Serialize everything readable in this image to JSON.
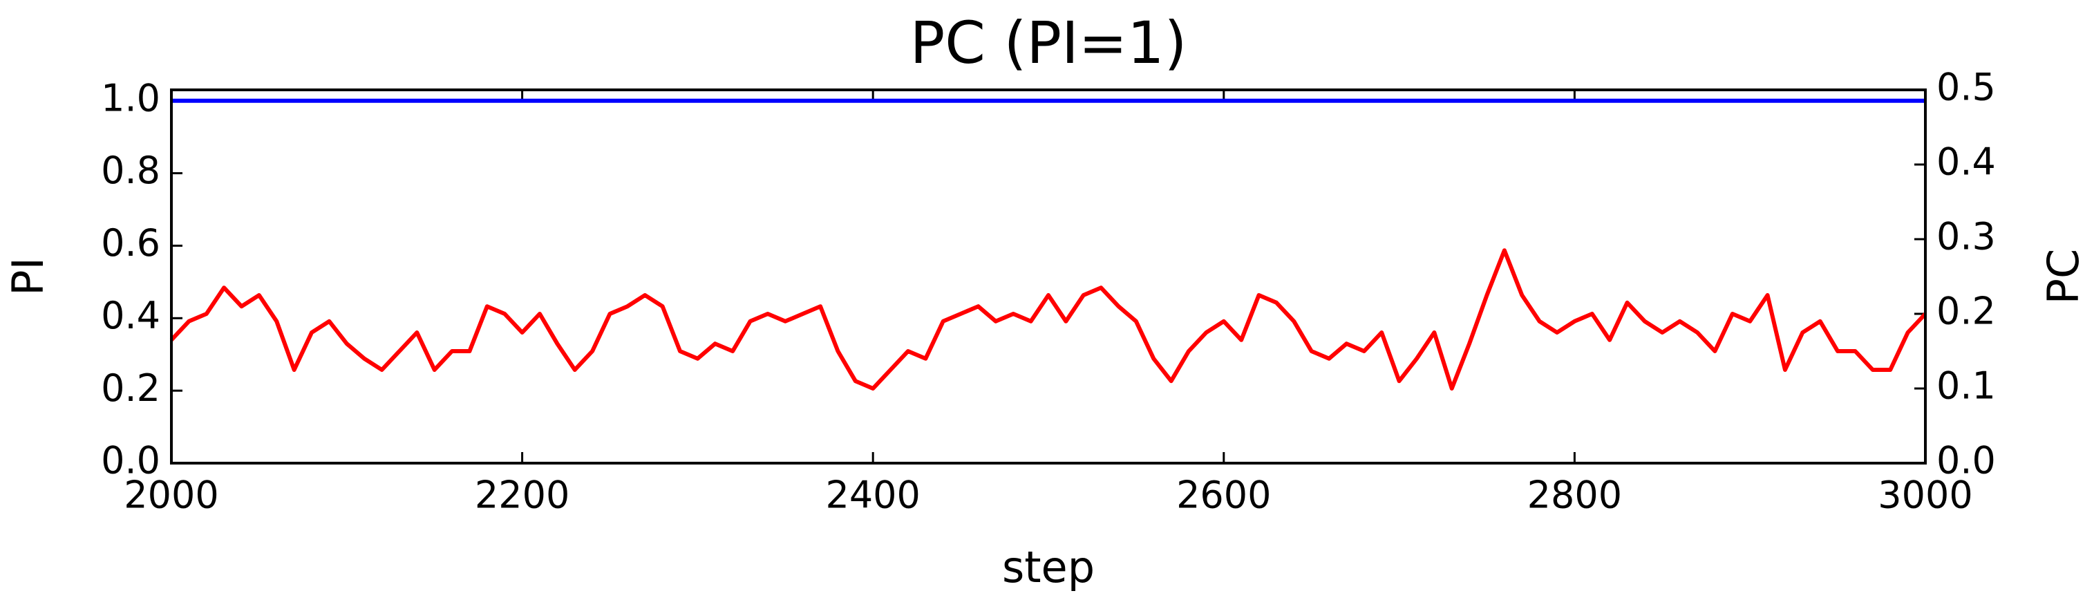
{
  "chart_data": {
    "type": "line",
    "title": "PC (PI=1)",
    "x_label": "step",
    "y_label": "PI",
    "y2_label": "PC",
    "x": [
      2000,
      2010,
      2020,
      2030,
      2040,
      2050,
      2060,
      2070,
      2080,
      2090,
      2100,
      2110,
      2120,
      2130,
      2140,
      2150,
      2160,
      2170,
      2180,
      2190,
      2200,
      2210,
      2220,
      2230,
      2240,
      2250,
      2260,
      2270,
      2280,
      2290,
      2300,
      2310,
      2320,
      2330,
      2340,
      2350,
      2360,
      2370,
      2380,
      2390,
      2400,
      2410,
      2420,
      2430,
      2440,
      2450,
      2460,
      2470,
      2480,
      2490,
      2500,
      2510,
      2520,
      2530,
      2540,
      2550,
      2560,
      2570,
      2580,
      2590,
      2600,
      2610,
      2620,
      2630,
      2640,
      2650,
      2660,
      2670,
      2680,
      2690,
      2700,
      2710,
      2720,
      2730,
      2740,
      2750,
      2760,
      2770,
      2780,
      2790,
      2800,
      2810,
      2820,
      2830,
      2840,
      2850,
      2860,
      2870,
      2880,
      2890,
      2900,
      2910,
      2920,
      2930,
      2940,
      2950,
      2960,
      2970,
      2980,
      2990,
      3000
    ],
    "series": [
      {
        "color": "#0000ff",
        "axis": "y",
        "values": [
          1,
          1,
          1,
          1,
          1,
          1,
          1,
          1,
          1,
          1,
          1,
          1,
          1,
          1,
          1,
          1,
          1,
          1,
          1,
          1,
          1,
          1,
          1,
          1,
          1,
          1,
          1,
          1,
          1,
          1,
          1,
          1,
          1,
          1,
          1,
          1,
          1,
          1,
          1,
          1,
          1,
          1,
          1,
          1,
          1,
          1,
          1,
          1,
          1,
          1,
          1,
          1,
          1,
          1,
          1,
          1,
          1,
          1,
          1,
          1,
          1,
          1,
          1,
          1,
          1,
          1,
          1,
          1,
          1,
          1,
          1,
          1,
          1,
          1,
          1,
          1,
          1,
          1,
          1,
          1,
          1,
          1,
          1,
          1,
          1,
          1,
          1,
          1,
          1,
          1,
          1,
          1,
          1,
          1,
          1,
          1,
          1,
          1,
          1,
          1,
          1
        ]
      },
      {
        "color": "#ff0000",
        "axis": "y2",
        "values": [
          0.165,
          0.19,
          0.2,
          0.235,
          0.21,
          0.225,
          0.19,
          0.125,
          0.175,
          0.19,
          0.16,
          0.14,
          0.125,
          0.15,
          0.175,
          0.125,
          0.15,
          0.15,
          0.21,
          0.2,
          0.175,
          0.2,
          0.16,
          0.125,
          0.15,
          0.2,
          0.21,
          0.225,
          0.21,
          0.15,
          0.14,
          0.16,
          0.15,
          0.19,
          0.2,
          0.19,
          0.2,
          0.21,
          0.15,
          0.11,
          0.1,
          0.125,
          0.15,
          0.14,
          0.19,
          0.2,
          0.21,
          0.19,
          0.2,
          0.19,
          0.225,
          0.19,
          0.225,
          0.235,
          0.21,
          0.19,
          0.14,
          0.11,
          0.15,
          0.175,
          0.19,
          0.165,
          0.225,
          0.215,
          0.19,
          0.15,
          0.14,
          0.16,
          0.15,
          0.175,
          0.11,
          0.14,
          0.175,
          0.1,
          0.16,
          0.225,
          0.285,
          0.225,
          0.19,
          0.175,
          0.19,
          0.2,
          0.165,
          0.215,
          0.19,
          0.175,
          0.19,
          0.175,
          0.15,
          0.2,
          0.19,
          0.225,
          0.125,
          0.175,
          0.19,
          0.15,
          0.15,
          0.125,
          0.125,
          0.175,
          0.2
        ]
      }
    ],
    "xlim": [
      2000,
      3000
    ],
    "xticks": [
      2000,
      2200,
      2400,
      2600,
      2800,
      3000
    ],
    "ylim": [
      0,
      1.03
    ],
    "yticks": [
      {
        "value": 0,
        "label": "0.0"
      },
      {
        "value": 0.2,
        "label": "0.2"
      },
      {
        "value": 0.4,
        "label": "0.4"
      },
      {
        "value": 0.6,
        "label": "0.6"
      },
      {
        "value": 0.8,
        "label": "0.8"
      },
      {
        "value": 1,
        "label": "1.0"
      }
    ],
    "y2lim": [
      0,
      0.5
    ],
    "y2ticks": [
      {
        "value": 0,
        "label": "0.0"
      },
      {
        "value": 0.1,
        "label": "0.1"
      },
      {
        "value": 0.2,
        "label": "0.2"
      },
      {
        "value": 0.3,
        "label": "0.3"
      },
      {
        "value": 0.4,
        "label": "0.4"
      },
      {
        "value": 0.5,
        "label": "0.5"
      }
    ],
    "y2_label_color": "#555555",
    "grid": false
  }
}
